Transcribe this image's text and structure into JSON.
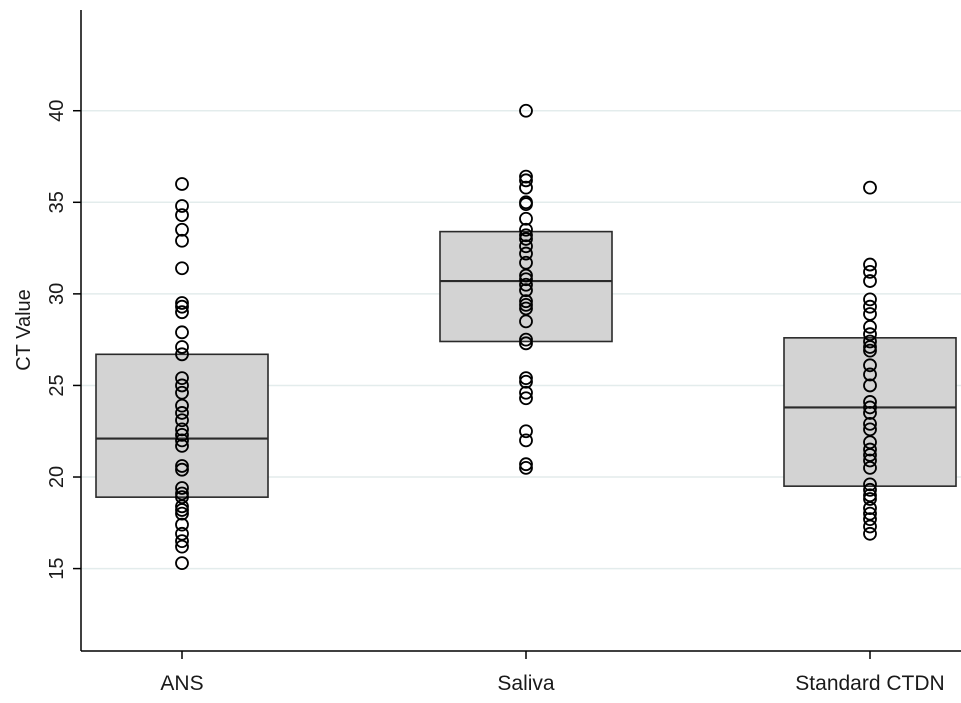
{
  "chart_data": {
    "type": "box",
    "ylabel": "CT Value",
    "ylim": [
      10.5,
      45.5
    ],
    "yticks": [
      15,
      20,
      25,
      30,
      35,
      40
    ],
    "grid": true,
    "categories": [
      "ANS",
      "Saliva",
      "Standard CTDN"
    ],
    "boxes": [
      {
        "category": "ANS",
        "q1": 18.9,
        "median": 22.1,
        "q3": 26.7,
        "points": [
          36.0,
          34.8,
          34.3,
          33.5,
          32.9,
          31.4,
          29.5,
          29.3,
          29.0,
          27.9,
          27.1,
          26.7,
          25.4,
          25.0,
          24.6,
          23.9,
          23.5,
          23.1,
          22.6,
          22.3,
          22.0,
          21.7,
          20.6,
          20.4,
          19.4,
          19.1,
          18.9,
          18.4,
          18.2,
          18.0,
          17.4,
          16.9,
          16.5,
          16.2,
          15.3
        ]
      },
      {
        "category": "Saliva",
        "q1": 27.4,
        "median": 30.7,
        "q3": 33.4,
        "points": [
          40.0,
          36.4,
          36.2,
          35.8,
          35.0,
          34.9,
          34.1,
          33.5,
          33.2,
          33.0,
          32.6,
          32.2,
          31.7,
          31.0,
          30.8,
          30.5,
          30.2,
          29.6,
          29.4,
          29.2,
          28.5,
          27.5,
          27.3,
          25.4,
          25.2,
          24.6,
          24.3,
          22.5,
          22.0,
          20.7,
          20.5
        ]
      },
      {
        "category": "Standard CTDN",
        "q1": 19.5,
        "median": 23.8,
        "q3": 27.6,
        "points": [
          35.8,
          31.6,
          31.2,
          30.7,
          29.7,
          29.3,
          28.9,
          28.2,
          27.8,
          27.4,
          27.1,
          26.9,
          26.1,
          25.6,
          25.0,
          24.1,
          23.8,
          23.5,
          22.9,
          22.6,
          21.9,
          21.5,
          21.2,
          20.9,
          20.5,
          19.6,
          19.3,
          19.0,
          18.8,
          18.3,
          18.0,
          17.7,
          17.3,
          16.9
        ]
      }
    ]
  }
}
